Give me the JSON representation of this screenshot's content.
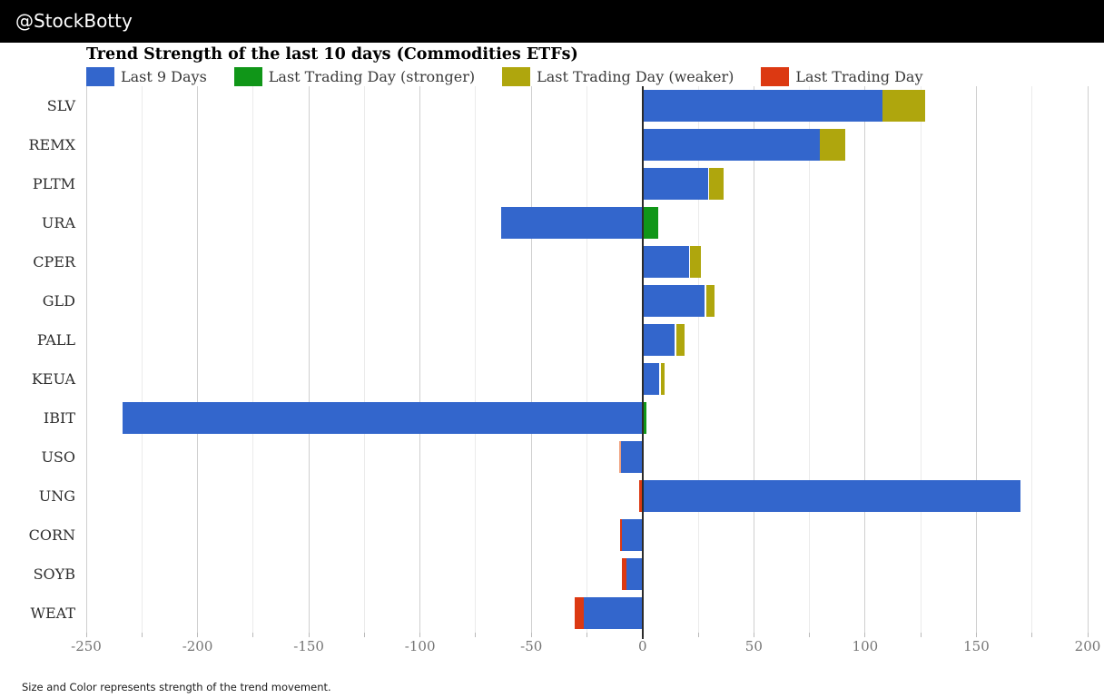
{
  "header": {
    "handle": "@StockBotty",
    "bg": "#000000"
  },
  "chart_data": {
    "type": "bar",
    "orientation": "horizontal",
    "stacked": true,
    "title": "Trend Strength of the last 10 days (Commodities ETFs)",
    "footnote": "Size and Color represents strength of the trend movement.",
    "xlim": [
      -250,
      200
    ],
    "grid_step": 25,
    "grid_on": true,
    "x_ticks": [
      -250,
      -200,
      -150,
      -100,
      -50,
      0,
      50,
      100,
      150,
      200
    ],
    "legend_position": "top",
    "legend": [
      {
        "label": "Last 9 Days",
        "color": "#3366CC"
      },
      {
        "label": "Last Trading Day (stronger)",
        "color": "#109618"
      },
      {
        "label": "Last Trading Day (weaker)",
        "color": "#AFA60D"
      },
      {
        "label": "Last Trading Day",
        "color": "#DC3912"
      }
    ],
    "colors": {
      "blue": "#3366CC",
      "green": "#109618",
      "olive": "#AFA60D",
      "red": "#DC3912",
      "salmon": "#F0A17D"
    },
    "rows": [
      {
        "label": "SLV",
        "last9": 107.8,
        "last_td": 19.1,
        "segments": [
          {
            "from": 0,
            "to": 107.8,
            "color": "blue"
          },
          {
            "from": 107.8,
            "to": 126.9,
            "color": "olive"
          }
        ]
      },
      {
        "label": "REMX",
        "last9": 79.5,
        "last_td": 11.4,
        "segments": [
          {
            "from": 0,
            "to": 79.5,
            "color": "blue"
          },
          {
            "from": 79.5,
            "to": 90.9,
            "color": "olive"
          }
        ]
      },
      {
        "label": "PLTM",
        "last9": 29.5,
        "last_td": 6.8,
        "segments": [
          {
            "from": 0,
            "to": 29.5,
            "color": "blue"
          },
          {
            "from": 30.0,
            "to": 36.6,
            "color": "olive"
          }
        ]
      },
      {
        "label": "URA",
        "last9": -63.5,
        "last_td": 7.0,
        "segments": [
          {
            "from": -63.5,
            "to": 0,
            "color": "blue"
          },
          {
            "from": 0.4,
            "to": 7.0,
            "color": "green"
          }
        ]
      },
      {
        "label": "CPER",
        "last9": 20.9,
        "last_td": 4.9,
        "segments": [
          {
            "from": 0,
            "to": 20.9,
            "color": "blue"
          },
          {
            "from": 21.5,
            "to": 26.2,
            "color": "olive"
          }
        ]
      },
      {
        "label": "GLD",
        "last9": 27.8,
        "last_td": 3.9,
        "segments": [
          {
            "from": 0,
            "to": 27.8,
            "color": "blue"
          },
          {
            "from": 28.5,
            "to": 32.3,
            "color": "olive"
          }
        ]
      },
      {
        "label": "PALL",
        "last9": 14.4,
        "last_td": 4.0,
        "segments": [
          {
            "from": 0,
            "to": 14.4,
            "color": "blue"
          },
          {
            "from": 15.1,
            "to": 19.0,
            "color": "olive"
          }
        ]
      },
      {
        "label": "KEUA",
        "last9": 7.4,
        "last_td": 1.8,
        "segments": [
          {
            "from": 0,
            "to": 7.4,
            "color": "blue"
          },
          {
            "from": 8.2,
            "to": 9.9,
            "color": "olive"
          }
        ]
      },
      {
        "label": "IBIT",
        "last9": -233.8,
        "last_td": 1.5,
        "segments": [
          {
            "from": -233.8,
            "to": 0,
            "color": "blue"
          },
          {
            "from": 0.2,
            "to": 1.6,
            "color": "green"
          }
        ]
      },
      {
        "label": "USO",
        "last9": -9.7,
        "last_td": -0.8,
        "segments": [
          {
            "from": -10.5,
            "to": -9.7,
            "color": "salmon"
          },
          {
            "from": -9.7,
            "to": 0,
            "color": "blue"
          }
        ]
      },
      {
        "label": "UNG",
        "last9": 169.9,
        "last_td": -1.5,
        "segments": [
          {
            "from": -1.5,
            "to": 0,
            "color": "red"
          },
          {
            "from": 0,
            "to": 169.9,
            "color": "blue"
          }
        ]
      },
      {
        "label": "CORN",
        "last9": -9.2,
        "last_td": -1.0,
        "segments": [
          {
            "from": -10.2,
            "to": -9.3,
            "color": "red"
          },
          {
            "from": -9.2,
            "to": 0,
            "color": "blue"
          }
        ]
      },
      {
        "label": "SOYB",
        "last9": -7.3,
        "last_td": -2.0,
        "segments": [
          {
            "from": -9.4,
            "to": -7.4,
            "color": "red"
          },
          {
            "from": -7.3,
            "to": 0,
            "color": "blue"
          }
        ]
      },
      {
        "label": "WEAT",
        "last9": -26.3,
        "last_td": -4.0,
        "segments": [
          {
            "from": -30.4,
            "to": -26.4,
            "color": "red"
          },
          {
            "from": -26.3,
            "to": 0,
            "color": "blue"
          }
        ]
      }
    ]
  }
}
